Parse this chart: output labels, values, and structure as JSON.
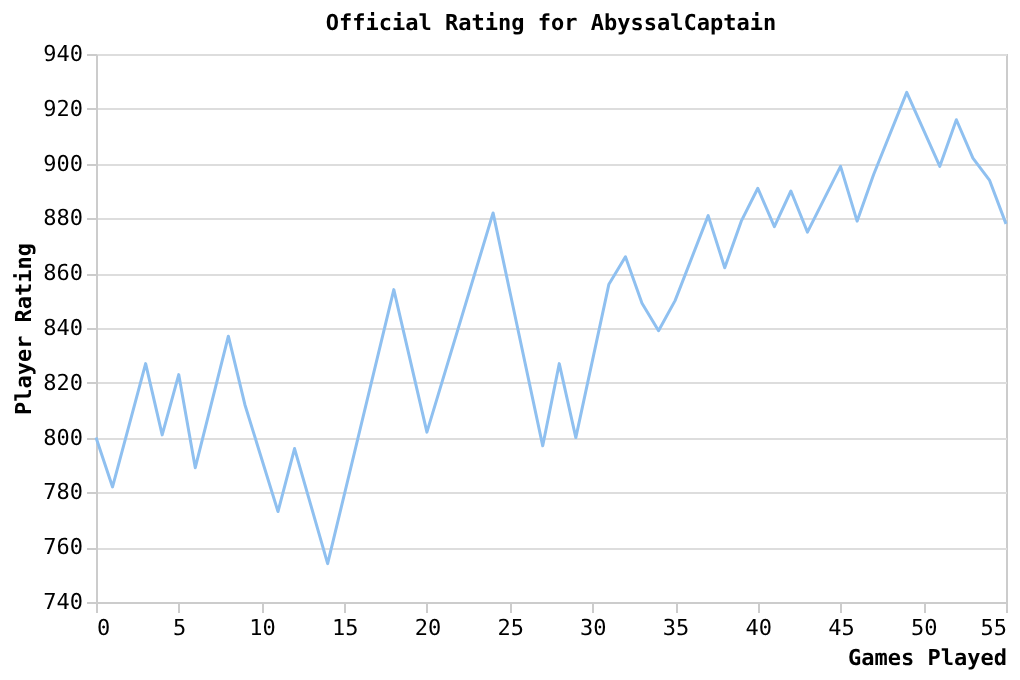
{
  "chart_data": {
    "type": "line",
    "title": "Official Rating for AbyssalCaptain",
    "xlabel": "Games Played",
    "ylabel": "Player Rating",
    "x": [
      0,
      1,
      3,
      4,
      5,
      6,
      8,
      9,
      11,
      12,
      14,
      18,
      20,
      24,
      27,
      28,
      29,
      31,
      32,
      33,
      34,
      35,
      37,
      38,
      39,
      40,
      41,
      42,
      43,
      45,
      46,
      47,
      49,
      51,
      52,
      53,
      54,
      55
    ],
    "series": [
      {
        "color": "#8fc0f0",
        "values": [
          800,
          782,
          827,
          801,
          823,
          789,
          837,
          812,
          773,
          796,
          754,
          854,
          802,
          882,
          797,
          827,
          800,
          856,
          866,
          849,
          839,
          850,
          881,
          862,
          879,
          891,
          877,
          890,
          875,
          899,
          879,
          896,
          926,
          899,
          916,
          902,
          894,
          878
        ]
      }
    ],
    "xlim": [
      0,
      55
    ],
    "xticks": [
      0,
      5,
      10,
      15,
      20,
      25,
      30,
      35,
      40,
      45,
      50,
      55
    ],
    "ylim": [
      740,
      940
    ],
    "yticks": [
      740,
      760,
      780,
      800,
      820,
      840,
      860,
      880,
      900,
      920,
      940
    ],
    "grid": "y",
    "marker": "none",
    "line_style": "solid"
  }
}
